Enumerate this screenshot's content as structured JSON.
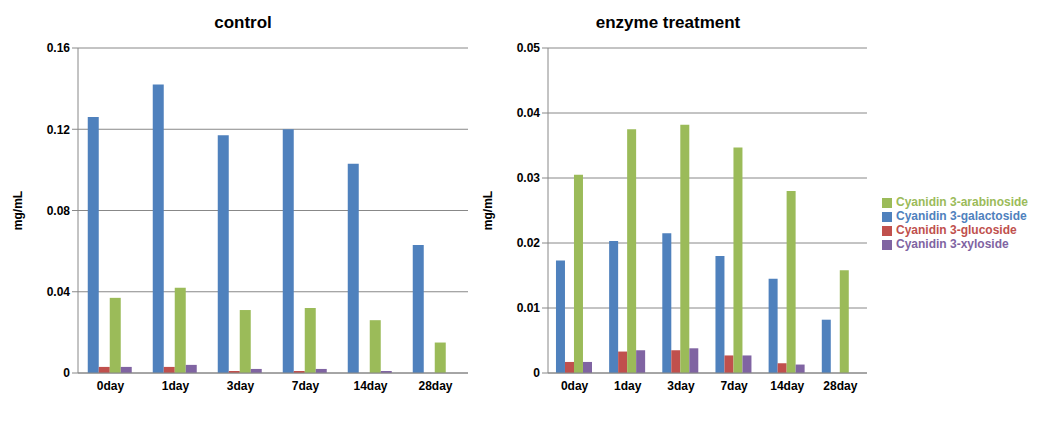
{
  "chart_data": [
    {
      "type": "bar",
      "title": "control",
      "y_label": "mg/mL",
      "categories": [
        "0day",
        "1day",
        "3day",
        "7day",
        "14day",
        "28day"
      ],
      "series": [
        {
          "name": "Cyanidin 3-galactoside",
          "color": "#4f81bd",
          "values": [
            0.126,
            0.142,
            0.117,
            0.12,
            0.103,
            0.063
          ]
        },
        {
          "name": "Cyanidin 3-glucoside",
          "color": "#c0504d",
          "values": [
            0.003,
            0.003,
            0.001,
            0.001,
            0,
            0
          ]
        },
        {
          "name": "Cyanidin 3-arabinoside",
          "color": "#9bbb59",
          "values": [
            0.037,
            0.042,
            0.031,
            0.032,
            0.026,
            0.015
          ]
        },
        {
          "name": "Cyanidin 3-xyloside",
          "color": "#8064a2",
          "values": [
            0.003,
            0.004,
            0.002,
            0.002,
            0.001,
            0
          ]
        }
      ],
      "ylim": [
        0,
        0.16
      ],
      "yticks": [
        0,
        0.04,
        0.08,
        0.12,
        0.16
      ],
      "grid": true
    },
    {
      "type": "bar",
      "title": "enzyme treatment",
      "y_label": "mg/mL",
      "categories": [
        "0day",
        "1day",
        "3day",
        "7day",
        "14day",
        "28day"
      ],
      "series": [
        {
          "name": "Cyanidin 3-galactoside",
          "color": "#4f81bd",
          "values": [
            0.0173,
            0.0203,
            0.0215,
            0.018,
            0.0145,
            0.0082
          ]
        },
        {
          "name": "Cyanidin 3-glucoside",
          "color": "#c0504d",
          "values": [
            0.0017,
            0.0033,
            0.0035,
            0.0027,
            0.0015,
            0
          ]
        },
        {
          "name": "Cyanidin 3-arabinoside",
          "color": "#9bbb59",
          "values": [
            0.0305,
            0.0375,
            0.0382,
            0.0347,
            0.028,
            0.0158
          ]
        },
        {
          "name": "Cyanidin 3-xyloside",
          "color": "#8064a2",
          "values": [
            0.0017,
            0.0035,
            0.0038,
            0.0027,
            0.0013,
            0
          ]
        }
      ],
      "ylim": [
        0,
        0.05
      ],
      "yticks": [
        0,
        0.01,
        0.02,
        0.03,
        0.04,
        0.05
      ],
      "grid": true,
      "legend": "right"
    }
  ]
}
